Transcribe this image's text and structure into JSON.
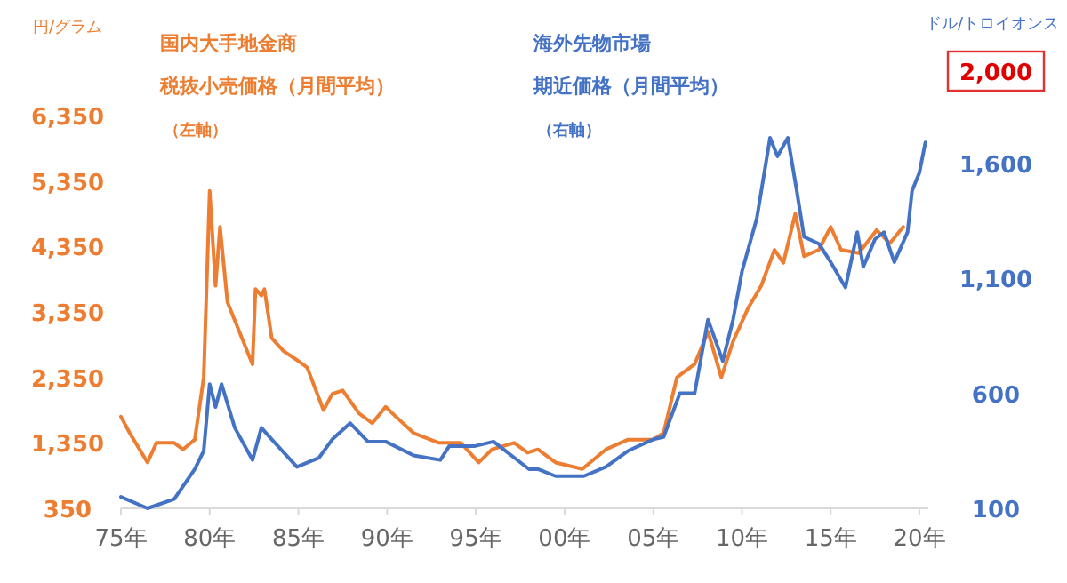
{
  "chart_data": {
    "type": "line",
    "ylabel": "円/グラム",
    "y2label": "ドル/トロイオンス",
    "legend": "top left",
    "line_style": "solid",
    "grid": false,
    "annotations": [
      "（左軸）",
      "（右軸）"
    ],
    "xlim": [
      "1975-01",
      "2020-07"
    ],
    "xticks": [
      {
        "value": "1975",
        "label": "75年"
      },
      {
        "value": "1980",
        "label": "80年"
      },
      {
        "value": "1985",
        "label": "85年"
      },
      {
        "value": "1990",
        "label": "90年"
      },
      {
        "value": "1995",
        "label": "95年"
      },
      {
        "value": "2000",
        "label": "00年"
      },
      {
        "value": "2005",
        "label": "05年"
      },
      {
        "value": "2010",
        "label": "10年"
      },
      {
        "value": "2015",
        "label": "15年"
      },
      {
        "value": "2020",
        "label": "20年"
      }
    ],
    "ylim": [
      350,
      6350
    ],
    "yticks": [
      {
        "value": 350,
        "label": "350"
      },
      {
        "value": 1350,
        "label": "1,350"
      },
      {
        "value": 2350,
        "label": "2,350"
      },
      {
        "value": 3350,
        "label": "3,350"
      },
      {
        "value": 4350,
        "label": "4,350"
      },
      {
        "value": 5350,
        "label": "5,350"
      },
      {
        "value": 6350,
        "label": "6,350"
      }
    ],
    "y2lim": [
      100,
      2000
    ],
    "y2ticks": [
      {
        "value": 100,
        "label": "100"
      },
      {
        "value": 600,
        "label": "600"
      },
      {
        "value": 1100,
        "label": "1,100"
      },
      {
        "value": 1600,
        "label": "1,600"
      },
      {
        "value": 2000,
        "label": "2,000"
      }
    ],
    "series": [
      {
        "name": "国内大手地金商税抜小売価格（月間平均）",
        "color": "#ed7d31",
        "x": [
          "1975-01",
          "1975-07",
          "1976-07",
          "1977-01",
          "1978-01",
          "1978-07",
          "1979-03",
          "1979-09",
          "1980-01",
          "1980-05",
          "1980-08",
          "1981-01",
          "1981-09",
          "1982-06",
          "1982-08",
          "1982-12",
          "1983-02",
          "1983-07",
          "1984-03",
          "1985-01",
          "1985-07",
          "1986-06",
          "1986-12",
          "1987-07",
          "1988-06",
          "1989-03",
          "1989-12",
          "1990-07",
          "1991-07",
          "1992-12",
          "1994-03",
          "1995-03",
          "1995-12",
          "1997-03",
          "1997-12",
          "1998-07",
          "1999-07",
          "2001-01",
          "2002-05",
          "2003-08",
          "2005-01",
          "2005-08",
          "2006-05",
          "2007-05",
          "2008-02",
          "2008-11",
          "2009-07",
          "2010-05",
          "2011-02",
          "2011-11",
          "2012-05",
          "2013-01",
          "2013-07",
          "2014-05",
          "2015-01",
          "2015-08",
          "2016-08",
          "2017-08",
          "2018-05",
          "2019-02"
        ],
        "values": [
          1750,
          1500,
          1050,
          1350,
          1350,
          1250,
          1400,
          2350,
          5200,
          3750,
          4650,
          3500,
          3050,
          2550,
          3700,
          3600,
          3700,
          2950,
          2750,
          2600,
          2500,
          1850,
          2100,
          2150,
          1800,
          1650,
          1900,
          1750,
          1500,
          1350,
          1350,
          1050,
          1250,
          1350,
          1200,
          1250,
          1050,
          950,
          1250,
          1400,
          1400,
          1500,
          2350,
          2550,
          3050,
          2350,
          2900,
          3400,
          3750,
          4300,
          4100,
          4850,
          4200,
          4300,
          4650,
          4300,
          4250,
          4600,
          4400,
          4650
        ]
      },
      {
        "name": "海外先物市場期近価格（月間平均）",
        "color": "#4472c4",
        "axis": "y2",
        "x": [
          "1975-01",
          "1976-07",
          "1978-01",
          "1979-03",
          "1979-09",
          "1980-01",
          "1980-05",
          "1980-09",
          "1981-06",
          "1982-06",
          "1982-12",
          "1983-07",
          "1984-12",
          "1986-03",
          "1986-12",
          "1987-12",
          "1988-12",
          "1989-12",
          "1991-07",
          "1993-01",
          "1993-07",
          "1994-12",
          "1996-01",
          "1997-03",
          "1998-01",
          "1998-07",
          "1999-07",
          "2001-02",
          "2002-05",
          "2003-08",
          "2005-01",
          "2005-08",
          "2006-07",
          "2007-05",
          "2008-02",
          "2008-12",
          "2009-07",
          "2010-01",
          "2010-11",
          "2011-08",
          "2012-01",
          "2012-08",
          "2013-02",
          "2013-07",
          "2014-05",
          "2015-01",
          "2015-11",
          "2016-07",
          "2016-11",
          "2017-07",
          "2018-01",
          "2018-08",
          "2019-05",
          "2019-08",
          "2020-01",
          "2020-05"
        ],
        "values": [
          150,
          100,
          140,
          270,
          350,
          640,
          540,
          640,
          450,
          310,
          450,
          400,
          280,
          320,
          400,
          470,
          390,
          390,
          330,
          310,
          370,
          370,
          390,
          320,
          270,
          270,
          240,
          240,
          280,
          350,
          400,
          410,
          600,
          600,
          920,
          740,
          920,
          1130,
          1360,
          1710,
          1630,
          1710,
          1480,
          1280,
          1250,
          1170,
          1060,
          1300,
          1150,
          1270,
          1300,
          1170,
          1300,
          1480,
          1560,
          1690
        ]
      }
    ]
  }
}
